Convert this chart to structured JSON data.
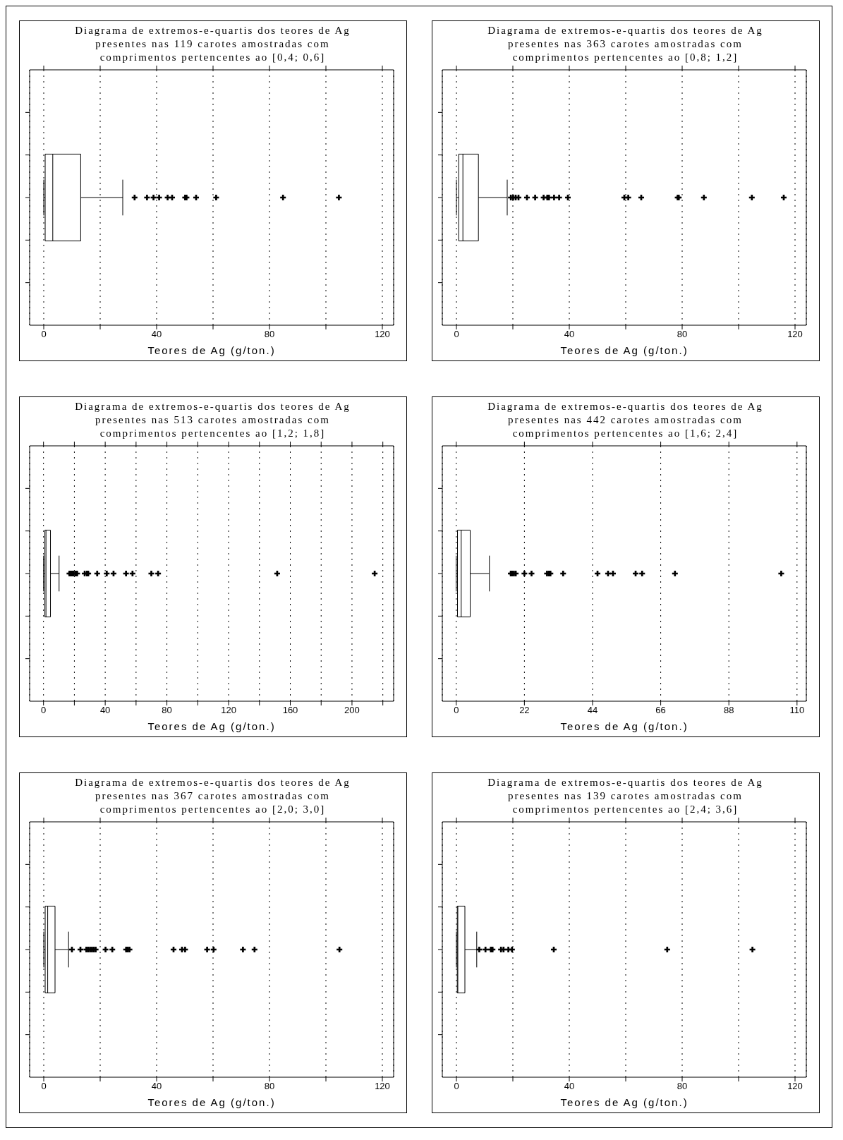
{
  "chart_data": [
    {
      "type": "box",
      "orientation": "horizontal",
      "title": "Diagrama de extremos-e-quartis dos teores de Ag presentes nas 119 carotes amostradas com comprimentos pertencentes ao [0,4; 0,6]",
      "xlabel": "Teores de Ag (g/ton.)",
      "categories": [
        null
      ],
      "boxes": [
        {
          "low": 0,
          "q1": 0.5,
          "median": 3.2,
          "q3": 13.1,
          "high": 28,
          "outliers": [
            32.2,
            36.6,
            38.9,
            40.9,
            43.9,
            45.5,
            50.1,
            50.6,
            54,
            61.1,
            84.8,
            104.6
          ]
        }
      ],
      "xlim": [
        -5,
        124
      ],
      "xticks": [
        0,
        {
          "value": 20,
          "label": null
        },
        40,
        {
          "value": 60,
          "label": null
        },
        80,
        {
          "value": 100,
          "label": null
        },
        120
      ],
      "grid": "x",
      "marker": "cross",
      "tick_labels": "x"
    },
    {
      "type": "box",
      "orientation": "horizontal",
      "title": "Diagrama de extremos-e-quartis dos teores de Ag presentes nas 363 carotes amostradas com comprimentos pertencentes ao [0,8; 1,2]",
      "xlabel": "Teores de Ag (g/ton.)",
      "categories": [
        null
      ],
      "boxes": [
        {
          "low": 0,
          "q1": 0.8,
          "median": 2.3,
          "q3": 7.8,
          "high": 18,
          "outliers": [
            19.3,
            20.1,
            21,
            22,
            25,
            27.9,
            30.9,
            32.2,
            32.8,
            34.6,
            36.4,
            39.5,
            59.5,
            60.9,
            65.5,
            78.4,
            78.8,
            87.7,
            104.7,
            116
          ]
        }
      ],
      "xlim": [
        -5,
        124
      ],
      "xticks": [
        0,
        {
          "value": 20,
          "label": null
        },
        40,
        {
          "value": 60,
          "label": null
        },
        80,
        {
          "value": 100,
          "label": null
        },
        120
      ],
      "grid": "x",
      "marker": "cross",
      "tick_labels": "x"
    },
    {
      "type": "box",
      "orientation": "horizontal",
      "title": "Diagrama de extremos-e-quartis dos teores de Ag presentes nas 513 carotes amostradas com comprimentos pertencentes ao [1,2; 1,8]",
      "xlabel": "Teores de Ag (g/ton.)",
      "categories": [
        null
      ],
      "boxes": [
        {
          "low": 0,
          "q1": 0.9,
          "median": 1.6,
          "q3": 4.5,
          "high": 10.1,
          "outliers": [
            16.8,
            17.6,
            18.4,
            19.5,
            20.7,
            21.8,
            26.7,
            28.2,
            29,
            34.8,
            41,
            45.4,
            53.5,
            57.7,
            69.9,
            74.3,
            151.5,
            214.7
          ]
        }
      ],
      "xlim": [
        -9,
        227
      ],
      "xticks": [
        0,
        {
          "value": 20,
          "label": null
        },
        40,
        {
          "value": 60,
          "label": null
        },
        80,
        {
          "value": 100,
          "label": null
        },
        120,
        {
          "value": 140,
          "label": null
        },
        160,
        {
          "value": 180,
          "label": null
        },
        200,
        {
          "value": 220,
          "label": null
        }
      ],
      "grid": "x",
      "marker": "cross",
      "tick_labels": "x"
    },
    {
      "type": "box",
      "orientation": "horizontal",
      "title": "Diagrama de extremos-e-quartis dos teores de Ag presentes nas 442 carotes amostradas com comprimentos pertencentes ao [1,6; 2,4]",
      "xlabel": "Teores de Ag (g/ton.)",
      "categories": [
        null
      ],
      "boxes": [
        {
          "low": 0,
          "q1": 0.4,
          "median": 1.6,
          "q3": 4.5,
          "high": 10.7,
          "outliers": [
            17.6,
            18,
            18.6,
            19.2,
            22,
            24.3,
            29.3,
            29.9,
            30.4,
            34.5,
            45.6,
            49,
            50.6,
            57.9,
            60,
            70.6,
            104.9
          ]
        }
      ],
      "xlim": [
        -4.5,
        113
      ],
      "xticks": [
        0,
        22,
        44,
        66,
        88,
        110
      ],
      "grid": "x",
      "marker": "cross",
      "tick_labels": "x"
    },
    {
      "type": "box",
      "orientation": "horizontal",
      "title": "Diagrama de extremos-e-quartis dos teores de Ag presentes nas 367 carotes amostradas com comprimentos pertencentes ao [2,0; 3,0]",
      "xlabel": "Teores de Ag (g/ton.)",
      "categories": [
        null
      ],
      "boxes": [
        {
          "low": 0,
          "q1": 0.5,
          "median": 1.4,
          "q3": 4,
          "high": 8.8,
          "outliers": [
            10,
            13,
            15.1,
            15.7,
            16.4,
            17.1,
            17.7,
            18.4,
            21.9,
            24.3,
            29.2,
            29.8,
            30.4,
            46,
            49,
            50.1,
            57.9,
            60.2,
            70.6,
            74.7,
            104.8
          ]
        }
      ],
      "xlim": [
        -5,
        124
      ],
      "xticks": [
        0,
        {
          "value": 20,
          "label": null
        },
        40,
        {
          "value": 60,
          "label": null
        },
        80,
        {
          "value": 100,
          "label": null
        },
        120
      ],
      "grid": "x",
      "marker": "cross",
      "tick_labels": "x"
    },
    {
      "type": "box",
      "orientation": "horizontal",
      "title": "Diagrama de extremos-e-quartis dos teores de Ag presentes nas 139 carotes amostradas com comprimentos pertencentes ao [2,4; 3,6]",
      "xlabel": "Teores de Ag (g/ton.)",
      "categories": [
        null
      ],
      "boxes": [
        {
          "low": 0,
          "q1": 0.3,
          "median": 0.5,
          "q3": 3,
          "high": 7.2,
          "outliers": [
            8.1,
            10.3,
            12.2,
            12.8,
            15.8,
            16.7,
            18.4,
            19.7,
            34.5,
            74.7,
            104.9
          ]
        }
      ],
      "xlim": [
        -5,
        124
      ],
      "xticks": [
        0,
        {
          "value": 20,
          "label": null
        },
        40,
        {
          "value": 60,
          "label": null
        },
        80,
        {
          "value": 100,
          "label": null
        },
        120
      ],
      "grid": "x",
      "marker": "cross",
      "tick_labels": "x"
    }
  ]
}
